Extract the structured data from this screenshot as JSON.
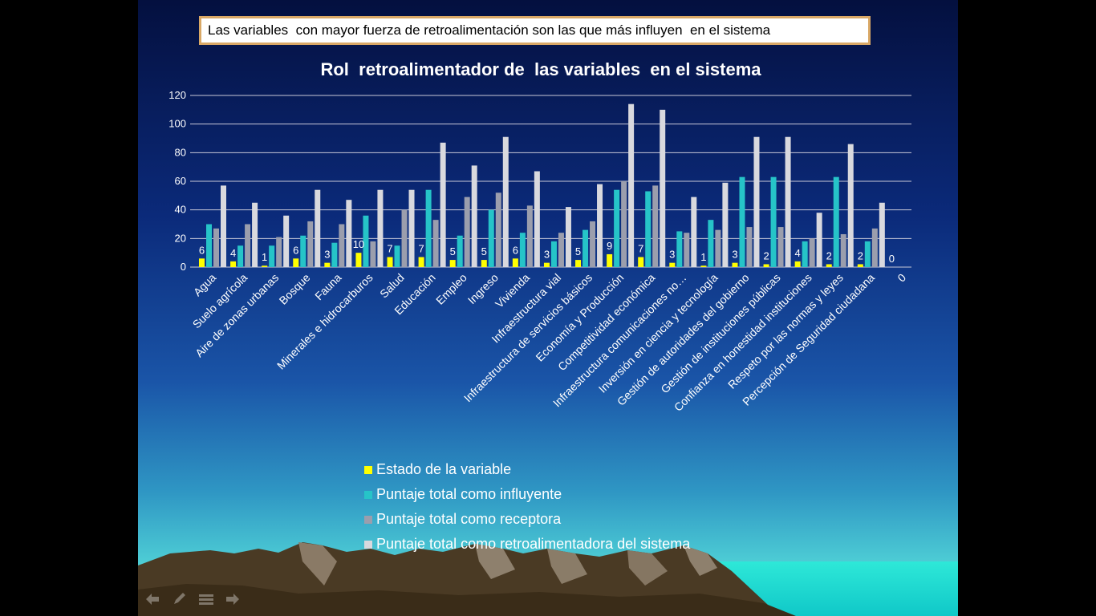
{
  "banner": {
    "text": "Las variables  con mayor fuerza de retroalimentación son las que más influyen  en el sistema"
  },
  "legend": [
    {
      "label": "Estado de la variable",
      "color": "#ffff00"
    },
    {
      "label": "Puntaje total como influyente",
      "color": "#26c4c8"
    },
    {
      "label": "Puntaje total como receptora",
      "color": "#9b9ead"
    },
    {
      "label": "Puntaje total como retroalimentadora del sistema",
      "color": "#d9d9de"
    }
  ],
  "nav_icons": [
    "previous-arrow-icon",
    "pen-icon",
    "menu-icon",
    "next-arrow-icon"
  ],
  "chart_data": {
    "type": "bar",
    "title": "Rol  retroalimentador de  las variables  en el sistema",
    "ylim": [
      0,
      120
    ],
    "yticks": [
      "0",
      "20",
      "40",
      "60",
      "80",
      "100",
      "120"
    ],
    "grid": true,
    "legend_position": "bottom",
    "categories": [
      "Agua",
      "Suelo agrícola",
      "Aire de zonas urbanas",
      "Bosque",
      "Fauna",
      "Minerales e hidrocarburos",
      "Salud",
      "Educación",
      "Empleo",
      "Ingreso",
      "Vivienda",
      "Infraestructura vial",
      "Infraestructura de servicios básicos",
      "Economía y Producción",
      "Competitividad económica",
      "Infraestructura comunicaciones no…",
      "Inversión en ciencia y tecnología",
      "Gestión de autoridades del gobierno",
      "Gestión de instituciones públicas",
      "Confianza en honestidad instituciones",
      "Respeto por las normas y leyes",
      "Percepción de Seguridad ciudadana",
      "0"
    ],
    "series": [
      {
        "name": "Estado de la variable",
        "color": "#ffff00",
        "values": [
          6,
          4,
          1,
          6,
          3,
          10,
          7,
          7,
          5,
          5,
          6,
          3,
          5,
          9,
          7,
          3,
          1,
          3,
          2,
          4,
          2,
          2,
          0
        ],
        "data_labels": [
          "6",
          "4",
          "1",
          "6",
          "3",
          "10",
          "7",
          "7",
          "5",
          "5",
          "6",
          "3",
          "5",
          "9",
          "7",
          "3",
          "1",
          "3",
          "2",
          "4",
          "2",
          "2",
          "0"
        ]
      },
      {
        "name": "Puntaje total como influyente",
        "color": "#26c4c8",
        "values": [
          30,
          15,
          15,
          22,
          17,
          36,
          15,
          54,
          22,
          40,
          24,
          18,
          26,
          54,
          53,
          25,
          33,
          63,
          63,
          18,
          63,
          18,
          0
        ]
      },
      {
        "name": "Puntaje total como receptora",
        "color": "#9b9ead",
        "values": [
          27,
          30,
          21,
          32,
          30,
          18,
          40,
          33,
          49,
          52,
          43,
          24,
          32,
          60,
          57,
          24,
          26,
          28,
          28,
          20,
          23,
          27,
          0
        ]
      },
      {
        "name": "Puntaje total como retroalimentadora del sistema",
        "color": "#d9d9de",
        "values": [
          57,
          45,
          36,
          54,
          47,
          54,
          54,
          87,
          71,
          91,
          67,
          42,
          58,
          114,
          110,
          49,
          59,
          91,
          91,
          38,
          86,
          45,
          0
        ]
      }
    ]
  }
}
